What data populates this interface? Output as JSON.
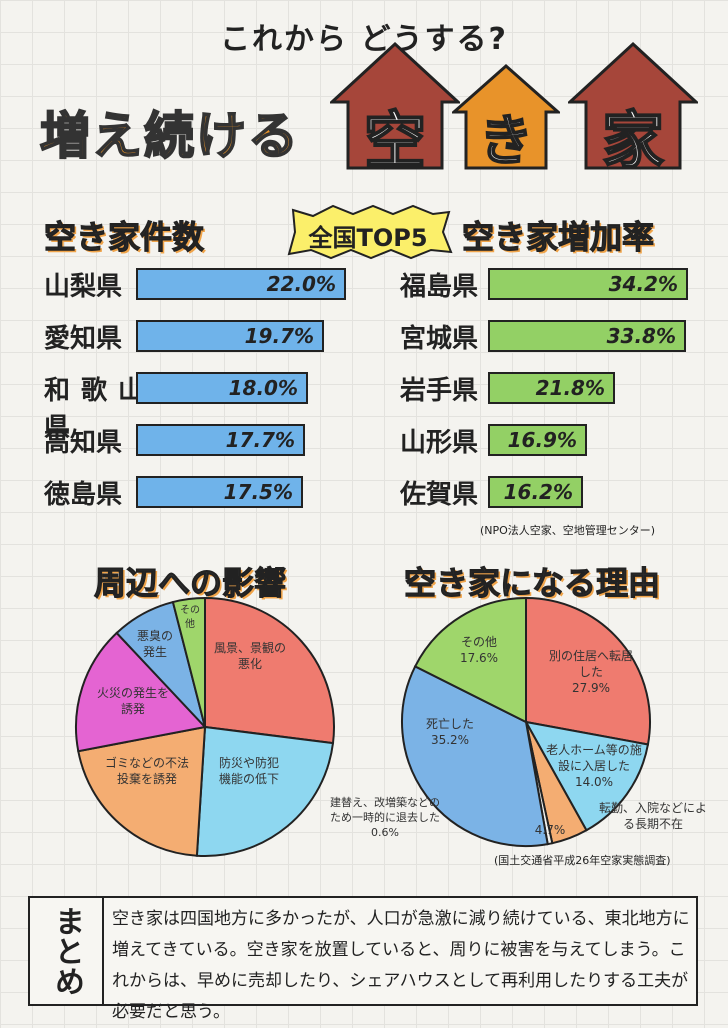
{
  "header": {
    "subtitle": "これから どうする?",
    "title": "増え続ける",
    "house_chars": [
      "空",
      "き",
      "家"
    ],
    "colors": {
      "house_red": "#a6463a",
      "house_orange": "#e8932a"
    }
  },
  "ranking": {
    "left_title": "空き家件数",
    "center_badge": "全国TOP5",
    "right_title": "空き家増加率",
    "left_items": [
      {
        "name": "山梨県",
        "value": "22.0%",
        "num": 22.0
      },
      {
        "name": "愛知県",
        "value": "19.7%",
        "num": 19.7
      },
      {
        "name": "和歌山県",
        "value": "18.0%",
        "num": 18.0
      },
      {
        "name": "高知県",
        "value": "17.7%",
        "num": 17.7
      },
      {
        "name": "徳島県",
        "value": "17.5%",
        "num": 17.5
      }
    ],
    "right_items": [
      {
        "name": "福島県",
        "value": "34.2%",
        "num": 34.2
      },
      {
        "name": "宮城県",
        "value": "33.8%",
        "num": 33.8
      },
      {
        "name": "岩手県",
        "value": "21.8%",
        "num": 21.8
      },
      {
        "name": "山形県",
        "value": "16.9%",
        "num": 16.9
      },
      {
        "name": "佐賀県",
        "value": "16.2%",
        "num": 16.2
      }
    ],
    "source": "(NPO法人空家、空地管理センター)"
  },
  "impact": {
    "title": "周辺への影響",
    "slices": [
      {
        "label": "風景、景観の悪化",
        "share": 0.27,
        "color": "#ef7b6f"
      },
      {
        "label": "防災や防犯機能の低下",
        "share": 0.24,
        "color": "#8ed7f0"
      },
      {
        "label": "ゴミなどの不法投棄を誘発",
        "share": 0.21,
        "color": "#f4ad72"
      },
      {
        "label": "火災の発生を誘発",
        "share": 0.16,
        "color": "#e464d2"
      },
      {
        "label": "悪臭の発生",
        "share": 0.08,
        "color": "#7bb3e6"
      },
      {
        "label": "その他",
        "share": 0.04,
        "color": "#9fd66b"
      }
    ]
  },
  "reasons": {
    "title": "空き家になる理由",
    "slices": [
      {
        "label": "別の住居へ転居した",
        "value": "27.9%",
        "share": 0.279,
        "color": "#ef7b6f"
      },
      {
        "label": "老人ホーム等の施設に入居した",
        "value": "14.0%",
        "share": 0.14,
        "color": "#8ed7f0"
      },
      {
        "label": "転勤、入院などによる長期不在",
        "value": "4.7%",
        "share": 0.047,
        "color": "#f4ad72"
      },
      {
        "label": "建替え、改増築などのため一時的に退去した",
        "value": "0.6%",
        "share": 0.006,
        "color": "#f1f1ee"
      },
      {
        "label": "死亡した",
        "value": "35.2%",
        "share": 0.352,
        "color": "#7bb3e6"
      },
      {
        "label": "その他",
        "value": "17.6%",
        "share": 0.176,
        "color": "#9fd66b"
      }
    ],
    "source": "(国土交通省平成26年空家実態調査)"
  },
  "summary": {
    "label": "まとめ",
    "text": "空き家は四国地方に多かったが、人口が急激に減り続けている、東北地方に増えてきている。空き家を放置していると、周りに被害を与えてしまう。これからは、早めに売却したり、シェアハウスとして再利用したりする工夫が必要だと思う。"
  }
}
